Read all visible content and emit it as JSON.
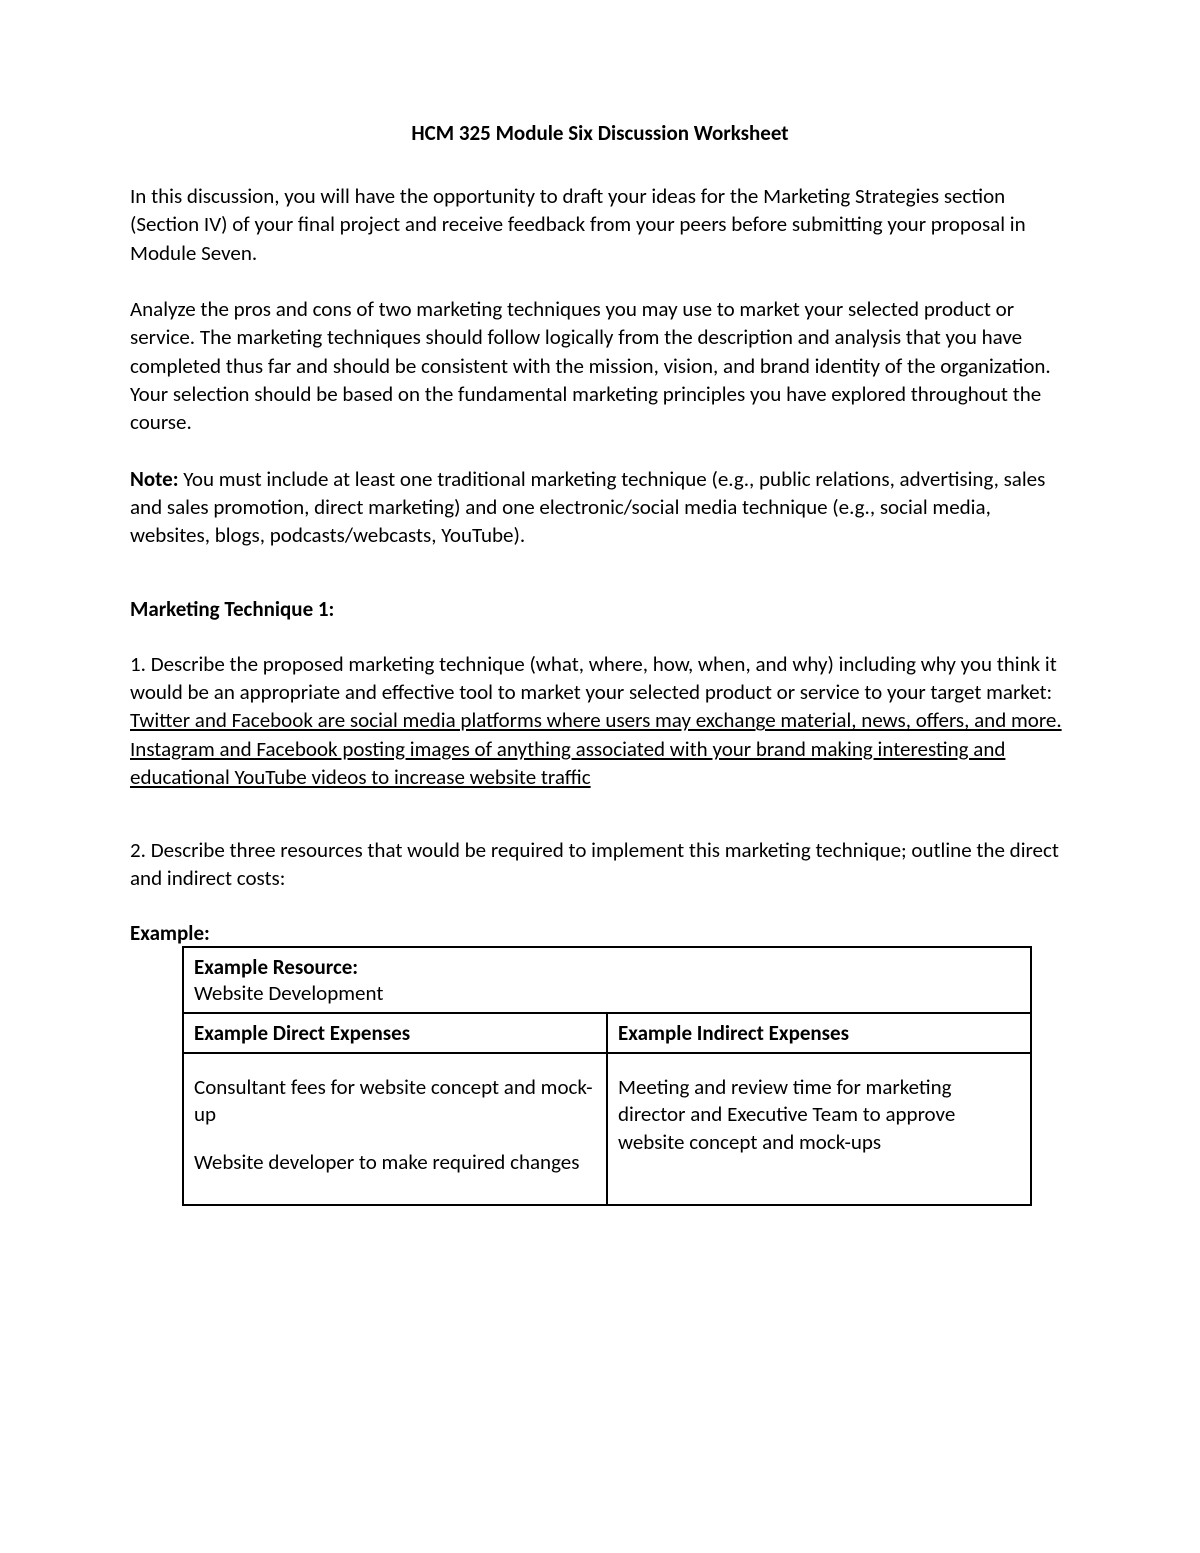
{
  "title": "HCM 325 Module Six Discussion Worksheet",
  "intro_p1": "In this discussion, you will have the opportunity to draft your ideas for the Marketing Strategies section (Section IV) of your final project and receive feedback from your peers before submitting your proposal in Module Seven.",
  "intro_p2": "Analyze the pros and cons of two marketing techniques you may use to market your selected product or service. The marketing techniques should follow logically from the description and analysis that you have completed thus far and should be consistent with the mission, vision, and brand identity of the organization. Your selection should be based on the fundamental marketing principles you have explored throughout the course.",
  "note_label": "Note:",
  "note_body": " You must include at least one traditional marketing technique (e.g., public relations, advertising, sales and sales promotion, direct marketing) and one electronic/social media technique (e.g., social media, websites, blogs, podcasts/webcasts, YouTube).",
  "tech1_heading": "Marketing Technique 1:",
  "q1_lead": "1. Describe the proposed marketing technique (what, where, how, when, and why) including why you think it would be an appropriate and effective tool to market your selected product or service to your target market: ",
  "q1_answer": "Twitter and Facebook are social media platforms where users may exchange material, news, offers, and more. Instagram and Facebook posting images of anything associated with your brand making interesting and educational YouTube videos to increase website traffic",
  "q2": "2. Describe three resources that would be required to implement this marketing technique; outline the direct and indirect costs:",
  "example_label": "Example:",
  "table": {
    "resource_label": "Example Resource:",
    "resource_value": "Website Development",
    "direct_header": "Example Direct Expenses",
    "indirect_header": "Example Indirect Expenses",
    "direct_items": [
      "Consultant fees for website concept and mock-up",
      "Website developer to make required changes"
    ],
    "indirect_items": [
      "Meeting and review time for marketing director and Executive Team to approve website concept and mock-ups"
    ]
  },
  "colors": {
    "text": "#000000",
    "background": "#ffffff",
    "border": "#000000"
  },
  "typography": {
    "font_family": "Calibri",
    "body_fontsize_pt": 11,
    "title_fontsize_pt": 11,
    "title_weight": "bold"
  }
}
